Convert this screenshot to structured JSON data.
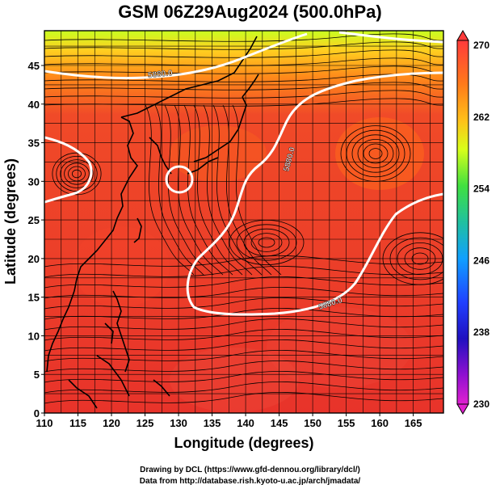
{
  "title": "GSM 06Z29Aug2024 (500.0hPa)",
  "xlabel": "Longitude (degrees)",
  "ylabel": "Latitude  (degrees)",
  "x_ticks": [
    "110",
    "115",
    "120",
    "125",
    "130",
    "135",
    "140",
    "145",
    "150",
    "155",
    "160",
    "165"
  ],
  "y_ticks": [
    "0",
    "5",
    "10",
    "15",
    "20",
    "25",
    "30",
    "35",
    "40",
    "45"
  ],
  "colorbar_ticks": [
    "270",
    "262",
    "254",
    "246",
    "238",
    "230"
  ],
  "contour_labels": [
    "5880.0",
    "5880.0",
    "5880.0"
  ],
  "credits": {
    "line1": "Drawing by DCL (https://www.gfd-dennou.org/library/dcl/)",
    "line2": "Data from http://database.rish.kyoto-u.ac.jp/arch/jmadata/"
  },
  "colors": {
    "field_low": "#e8332a",
    "field_mid": "#ff6a1a",
    "field_high_north": "#c8ff20",
    "contour": "#ffffff",
    "streamline": "#000000"
  }
}
